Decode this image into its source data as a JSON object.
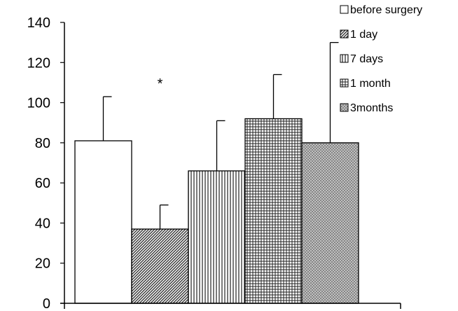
{
  "chart_data": {
    "type": "bar",
    "title": "",
    "xlabel": "",
    "ylabel": "",
    "ylim": [
      0,
      140
    ],
    "yticks": [
      0,
      20,
      40,
      60,
      80,
      100,
      120,
      140
    ],
    "grid": false,
    "legend_position": "top-right",
    "series": [
      {
        "name": "before surgery",
        "value": 81,
        "error": 22,
        "pattern": "solid-white"
      },
      {
        "name": "1 day",
        "value": 37,
        "error": 12,
        "pattern": "diagonal-hatch"
      },
      {
        "name": "7 days",
        "value": 66,
        "error": 25,
        "pattern": "vertical-lines"
      },
      {
        "name": "1 month",
        "value": 92,
        "error": 22,
        "pattern": "crosshatch-grid"
      },
      {
        "name": "3months",
        "value": 80,
        "error": 50,
        "pattern": "dotted-mesh"
      }
    ],
    "annotations": [
      {
        "text": "*",
        "series": "1 day"
      }
    ]
  }
}
